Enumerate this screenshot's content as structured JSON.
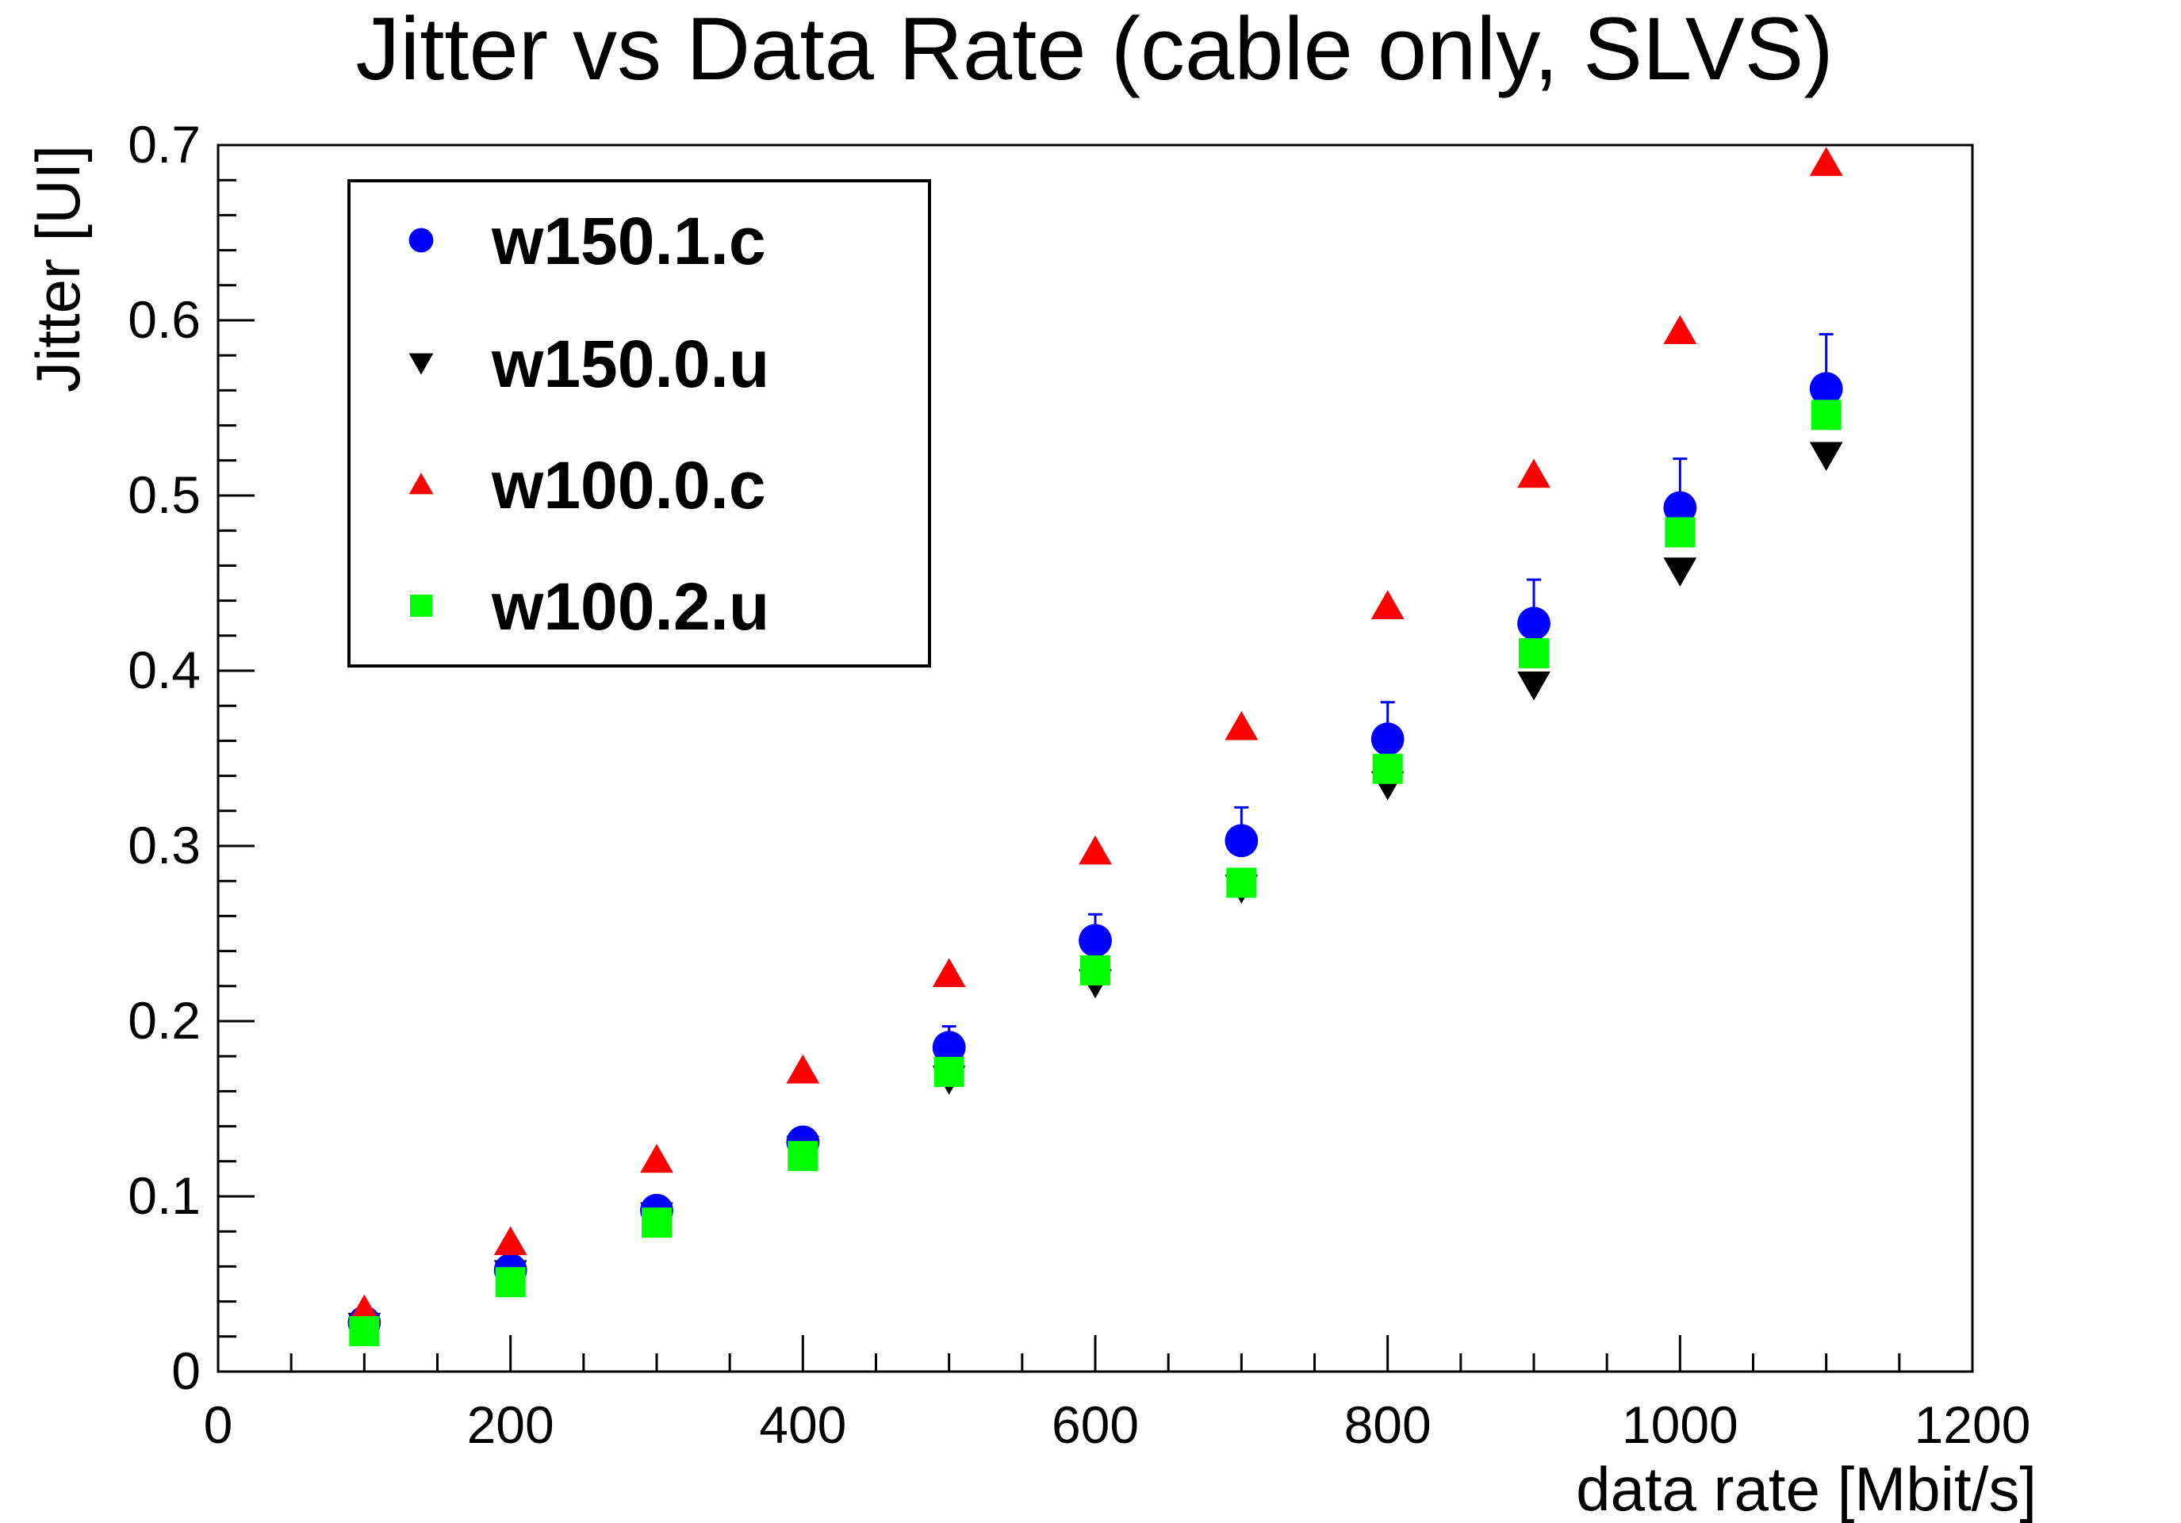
{
  "chart_data": {
    "type": "scatter",
    "title": "Jitter vs Data Rate (cable only, SLVS)",
    "xlabel": "data rate [Mbit/s]",
    "ylabel": "Jitter [UI]",
    "xlim": [
      0,
      1200
    ],
    "ylim": [
      0,
      0.7
    ],
    "x_ticks": [
      0,
      200,
      400,
      600,
      800,
      1000,
      1200
    ],
    "x_tick_labels": [
      "0",
      "200",
      "400",
      "600",
      "800",
      "1000",
      "1200"
    ],
    "y_ticks": [
      0,
      0.1,
      0.2,
      0.3,
      0.4,
      0.5,
      0.6,
      0.7
    ],
    "y_tick_labels": [
      "0",
      "0.1",
      "0.2",
      "0.3",
      "0.4",
      "0.5",
      "0.6",
      "0.7"
    ],
    "grid": false,
    "legend_position": "top-left",
    "x": [
      100,
      200,
      300,
      400,
      500,
      600,
      700,
      800,
      900,
      1000,
      1100
    ],
    "series": [
      {
        "name": "w150.1.c",
        "marker": "circle",
        "color": "#0000ff",
        "values": [
          0.028,
          0.058,
          0.092,
          0.131,
          0.185,
          0.246,
          0.303,
          0.361,
          0.427,
          0.493,
          0.561
        ],
        "error_up": [
          0.003,
          0.004,
          0.005,
          0.007,
          0.012,
          0.015,
          0.019,
          0.021,
          0.025,
          0.028,
          0.031
        ]
      },
      {
        "name": "w150.0.u",
        "marker": "triangle-down",
        "color": "#000000",
        "values": [
          0.026,
          0.056,
          0.089,
          0.127,
          0.167,
          0.222,
          0.276,
          0.335,
          0.392,
          0.457,
          0.523
        ]
      },
      {
        "name": "w100.0.c",
        "marker": "triangle-up",
        "color": "#ff0000",
        "values": [
          0.035,
          0.074,
          0.121,
          0.172,
          0.227,
          0.297,
          0.368,
          0.437,
          0.512,
          0.594,
          0.69
        ]
      },
      {
        "name": "w100.2.u",
        "marker": "square",
        "color": "#00ff00",
        "values": [
          0.023,
          0.051,
          0.085,
          0.123,
          0.171,
          0.229,
          0.279,
          0.344,
          0.41,
          0.479,
          0.546
        ]
      }
    ]
  }
}
